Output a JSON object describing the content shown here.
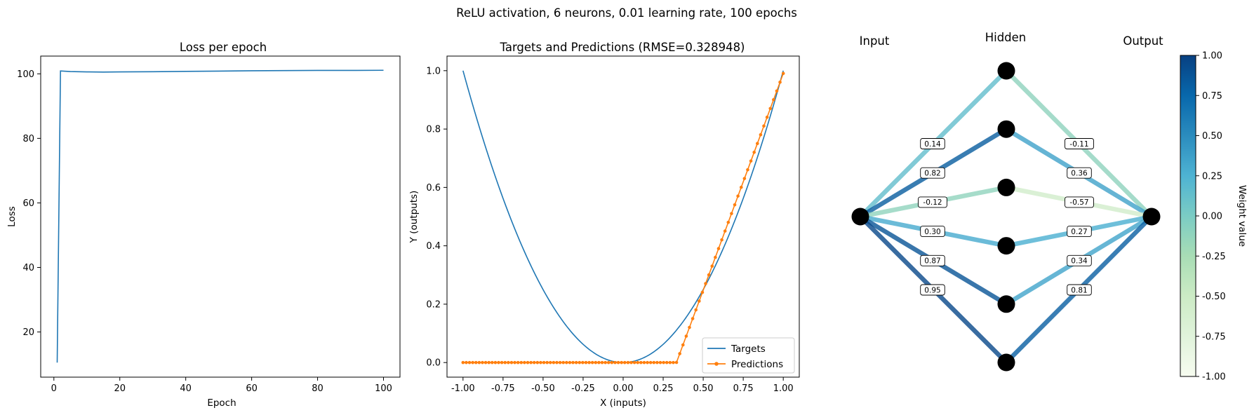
{
  "suptitle": "ReLU activation, 6 neurons, 0.01 learning rate, 100 epochs",
  "chart_data": [
    {
      "type": "line",
      "title": "Loss per epoch",
      "xlabel": "Epoch",
      "ylabel": "Loss",
      "xlim": [
        -4,
        105
      ],
      "ylim": [
        6,
        105.5
      ],
      "xticks": [
        0,
        20,
        40,
        60,
        80,
        100
      ],
      "yticks": [
        20,
        40,
        60,
        80,
        100
      ],
      "color": "#1f77b4",
      "series": [
        {
          "name": "Loss",
          "x": [
            1,
            2,
            5,
            10,
            15,
            20,
            30,
            40,
            50,
            60,
            70,
            80,
            90,
            100
          ],
          "y": [
            10.5,
            100.9,
            100.7,
            100.6,
            100.55,
            100.6,
            100.65,
            100.75,
            100.85,
            100.95,
            101.0,
            101.05,
            101.05,
            101.1
          ]
        }
      ]
    },
    {
      "type": "line",
      "title": "Targets and Predictions (RMSE=0.328948)",
      "xlabel": "X (inputs)",
      "ylabel": "Y (outputs)",
      "xlim": [
        -1.1,
        1.1
      ],
      "ylim": [
        -0.05,
        1.05
      ],
      "xticks": [
        "-1.00",
        "-0.75",
        "-0.50",
        "-0.25",
        "0.00",
        "0.25",
        "0.50",
        "0.75",
        "1.00"
      ],
      "yticks": [
        "0.0",
        "0.2",
        "0.4",
        "0.6",
        "0.8",
        "1.0"
      ],
      "legend_position": "lower-right",
      "series": [
        {
          "name": "Targets",
          "color": "#1f77b4",
          "function": "x^2",
          "x_range": [
            -1.0,
            1.0
          ],
          "marker": "none"
        },
        {
          "name": "Predictions",
          "color": "#ff7f0e",
          "marker": "dot",
          "points": 100,
          "x_range": [
            -1.0,
            1.0
          ],
          "relu_kink_x": 0.333,
          "slope": 1.485
        }
      ]
    },
    {
      "type": "network",
      "column_labels": [
        "Input",
        "Hidden",
        "Output"
      ],
      "hidden_neurons": 6,
      "input_weights": [
        0.14,
        0.82,
        -0.12,
        0.3,
        0.87,
        0.95
      ],
      "output_weights": [
        -0.11,
        0.36,
        -0.57,
        0.27,
        0.34,
        0.81
      ],
      "colorbar": {
        "label": "Weight value",
        "range": [
          -1.0,
          1.0
        ],
        "ticks": [
          "1.00",
          "0.75",
          "0.50",
          "0.25",
          "0.00",
          "-0.25",
          "-0.50",
          "-0.75",
          "-1.00"
        ],
        "colormap": "GnBu"
      }
    }
  ]
}
